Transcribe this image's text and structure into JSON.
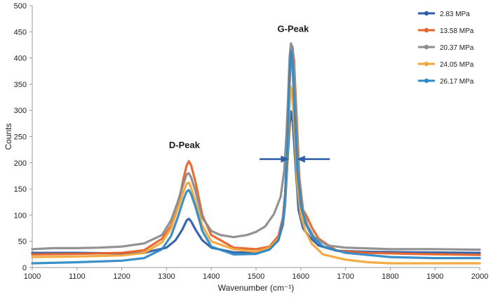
{
  "chart_data": {
    "type": "line",
    "title": "",
    "xlabel": "Wavenumber (cm⁻¹)",
    "ylabel": "Counts",
    "xlim": [
      1000,
      2000
    ],
    "ylim": [
      0,
      500
    ],
    "x_ticks": [
      1000,
      1100,
      1200,
      1300,
      1400,
      1500,
      1600,
      1700,
      1800,
      1900,
      2000
    ],
    "y_ticks": [
      0,
      50,
      100,
      150,
      200,
      250,
      300,
      350,
      400,
      450,
      500
    ],
    "grid": false,
    "legend_position": "top-right",
    "annotations": [
      {
        "text": "D-Peak",
        "x": 1340,
        "y": 228
      },
      {
        "text": "G-Peak",
        "x": 1583,
        "y": 450
      }
    ],
    "arrows": [
      {
        "from_x": 1508,
        "to_x": 1568,
        "y": 207,
        "direction": "right"
      },
      {
        "from_x": 1665,
        "to_x": 1597,
        "y": 207,
        "direction": "left"
      }
    ],
    "series": [
      {
        "name": "2.83 MPa",
        "color": "#2e5ea8",
        "points": [
          [
            1000,
            28
          ],
          [
            1100,
            28
          ],
          [
            1200,
            27
          ],
          [
            1250,
            28
          ],
          [
            1300,
            38
          ],
          [
            1320,
            52
          ],
          [
            1335,
            72
          ],
          [
            1345,
            90
          ],
          [
            1350,
            93
          ],
          [
            1355,
            88
          ],
          [
            1365,
            72
          ],
          [
            1380,
            52
          ],
          [
            1400,
            38
          ],
          [
            1450,
            29
          ],
          [
            1500,
            28
          ],
          [
            1530,
            36
          ],
          [
            1550,
            52
          ],
          [
            1560,
            82
          ],
          [
            1565,
            120
          ],
          [
            1570,
            200
          ],
          [
            1575,
            270
          ],
          [
            1578,
            298
          ],
          [
            1582,
            278
          ],
          [
            1588,
            200
          ],
          [
            1595,
            110
          ],
          [
            1605,
            75
          ],
          [
            1620,
            58
          ],
          [
            1640,
            42
          ],
          [
            1680,
            32
          ],
          [
            1750,
            30
          ],
          [
            1850,
            29
          ],
          [
            2000,
            28
          ]
        ]
      },
      {
        "name": "13.58 MPa",
        "color": "#e8642a",
        "points": [
          [
            1000,
            25
          ],
          [
            1100,
            26
          ],
          [
            1200,
            28
          ],
          [
            1250,
            33
          ],
          [
            1290,
            55
          ],
          [
            1310,
            80
          ],
          [
            1325,
            115
          ],
          [
            1338,
            170
          ],
          [
            1345,
            195
          ],
          [
            1350,
            203
          ],
          [
            1355,
            195
          ],
          [
            1365,
            162
          ],
          [
            1380,
            100
          ],
          [
            1400,
            62
          ],
          [
            1450,
            38
          ],
          [
            1500,
            35
          ],
          [
            1530,
            40
          ],
          [
            1550,
            60
          ],
          [
            1560,
            95
          ],
          [
            1565,
            140
          ],
          [
            1570,
            250
          ],
          [
            1575,
            350
          ],
          [
            1578,
            400
          ],
          [
            1581,
            421
          ],
          [
            1585,
            395
          ],
          [
            1590,
            300
          ],
          [
            1597,
            170
          ],
          [
            1605,
            110
          ],
          [
            1612,
            100
          ],
          [
            1625,
            76
          ],
          [
            1640,
            55
          ],
          [
            1680,
            32
          ],
          [
            1750,
            28
          ],
          [
            1850,
            26
          ],
          [
            2000,
            24
          ]
        ]
      },
      {
        "name": "20.37 MPa",
        "color": "#8c8c8c",
        "points": [
          [
            1000,
            35
          ],
          [
            1050,
            37
          ],
          [
            1100,
            37
          ],
          [
            1150,
            38
          ],
          [
            1200,
            40
          ],
          [
            1250,
            46
          ],
          [
            1290,
            62
          ],
          [
            1310,
            90
          ],
          [
            1325,
            125
          ],
          [
            1338,
            160
          ],
          [
            1345,
            178
          ],
          [
            1350,
            180
          ],
          [
            1355,
            172
          ],
          [
            1365,
            145
          ],
          [
            1380,
            95
          ],
          [
            1400,
            70
          ],
          [
            1420,
            62
          ],
          [
            1450,
            58
          ],
          [
            1480,
            62
          ],
          [
            1500,
            68
          ],
          [
            1520,
            78
          ],
          [
            1540,
            102
          ],
          [
            1555,
            135
          ],
          [
            1563,
            185
          ],
          [
            1568,
            255
          ],
          [
            1572,
            330
          ],
          [
            1575,
            400
          ],
          [
            1578,
            428
          ],
          [
            1582,
            420
          ],
          [
            1586,
            365
          ],
          [
            1591,
            255
          ],
          [
            1597,
            160
          ],
          [
            1605,
            110
          ],
          [
            1615,
            80
          ],
          [
            1630,
            58
          ],
          [
            1660,
            42
          ],
          [
            1700,
            38
          ],
          [
            1800,
            35
          ],
          [
            1900,
            35
          ],
          [
            2000,
            34
          ]
        ]
      },
      {
        "name": "24.05 MPa",
        "color": "#f2a73a",
        "points": [
          [
            1000,
            20
          ],
          [
            1100,
            21
          ],
          [
            1200,
            23
          ],
          [
            1250,
            28
          ],
          [
            1290,
            48
          ],
          [
            1310,
            75
          ],
          [
            1325,
            112
          ],
          [
            1338,
            145
          ],
          [
            1345,
            160
          ],
          [
            1350,
            162
          ],
          [
            1355,
            152
          ],
          [
            1365,
            125
          ],
          [
            1380,
            80
          ],
          [
            1400,
            50
          ],
          [
            1450,
            35
          ],
          [
            1500,
            30
          ],
          [
            1530,
            38
          ],
          [
            1550,
            55
          ],
          [
            1560,
            88
          ],
          [
            1565,
            130
          ],
          [
            1570,
            215
          ],
          [
            1575,
            310
          ],
          [
            1578,
            345
          ],
          [
            1582,
            320
          ],
          [
            1587,
            240
          ],
          [
            1593,
            150
          ],
          [
            1600,
            100
          ],
          [
            1610,
            70
          ],
          [
            1625,
            45
          ],
          [
            1650,
            25
          ],
          [
            1700,
            15
          ],
          [
            1750,
            10
          ],
          [
            1800,
            8
          ],
          [
            1900,
            8
          ],
          [
            2000,
            8
          ]
        ]
      },
      {
        "name": "26.17 MPa",
        "color": "#2f8ac4",
        "points": [
          [
            1000,
            8
          ],
          [
            1100,
            10
          ],
          [
            1200,
            13
          ],
          [
            1250,
            18
          ],
          [
            1290,
            35
          ],
          [
            1310,
            60
          ],
          [
            1325,
            95
          ],
          [
            1338,
            130
          ],
          [
            1345,
            145
          ],
          [
            1350,
            148
          ],
          [
            1355,
            140
          ],
          [
            1365,
            115
          ],
          [
            1380,
            70
          ],
          [
            1400,
            40
          ],
          [
            1450,
            25
          ],
          [
            1500,
            26
          ],
          [
            1530,
            34
          ],
          [
            1550,
            52
          ],
          [
            1560,
            90
          ],
          [
            1565,
            140
          ],
          [
            1570,
            230
          ],
          [
            1575,
            370
          ],
          [
            1578,
            413
          ],
          [
            1581,
            395
          ],
          [
            1586,
            300
          ],
          [
            1592,
            190
          ],
          [
            1600,
            120
          ],
          [
            1610,
            85
          ],
          [
            1625,
            60
          ],
          [
            1650,
            40
          ],
          [
            1700,
            28
          ],
          [
            1800,
            20
          ],
          [
            1900,
            18
          ],
          [
            2000,
            18
          ]
        ]
      }
    ]
  }
}
